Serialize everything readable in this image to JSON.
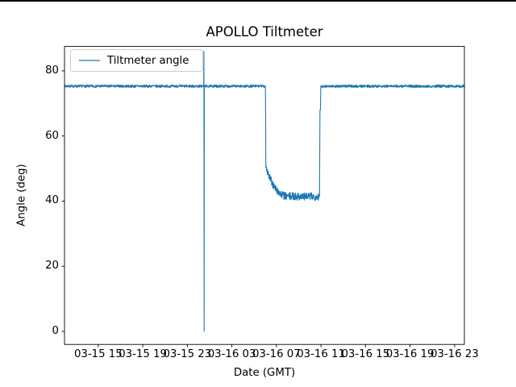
{
  "screen": {
    "background": "#ffffff",
    "top_edge_color": "#000000"
  },
  "chart_data": {
    "type": "line",
    "title": "APOLLO Tiltmeter",
    "xlabel": "Date (GMT)",
    "ylabel": "Angle (deg)",
    "grid": false,
    "frame_color": "#000000",
    "text_color": "#000000",
    "legend": {
      "position": "upper-left",
      "entries": [
        {
          "label": "Tiltmeter angle",
          "color": "#1f77b4"
        }
      ]
    },
    "x_axis": {
      "unit": "hours from 03-15 00:00 GMT",
      "range": [
        11.97,
        47.88
      ],
      "ticks": [
        {
          "hour": 15,
          "label": "03-15 15"
        },
        {
          "hour": 19,
          "label": "03-15 19"
        },
        {
          "hour": 23,
          "label": "03-15 23"
        },
        {
          "hour": 27,
          "label": "03-16 03"
        },
        {
          "hour": 31,
          "label": "03-16 07"
        },
        {
          "hour": 35,
          "label": "03-16 11"
        },
        {
          "hour": 39,
          "label": "03-16 15"
        },
        {
          "hour": 43,
          "label": "03-16 19"
        },
        {
          "hour": 47,
          "label": "03-16 23"
        }
      ]
    },
    "y_axis": {
      "range": [
        -4,
        87.5
      ],
      "ticks": [
        {
          "value": 0,
          "label": "0"
        },
        {
          "value": 20,
          "label": "20"
        },
        {
          "value": 40,
          "label": "40"
        },
        {
          "value": 60,
          "label": "60"
        },
        {
          "value": 80,
          "label": "80"
        }
      ]
    },
    "series": [
      {
        "name": "Tiltmeter angle",
        "color": "#1f77b4",
        "sample_step_hours": 0.02,
        "profile_points": [
          [
            11.97,
            75.3
          ],
          [
            24.47,
            75.3
          ],
          [
            24.49,
            86.0
          ],
          [
            24.51,
            0.0
          ],
          [
            24.53,
            75.3
          ],
          [
            30.02,
            75.3
          ],
          [
            30.05,
            50.5
          ],
          [
            30.35,
            47.5
          ],
          [
            30.7,
            45.0
          ],
          [
            31.05,
            43.2
          ],
          [
            31.45,
            42.0
          ],
          [
            31.8,
            41.5
          ],
          [
            34.88,
            41.4
          ],
          [
            34.9,
            68.0
          ],
          [
            34.96,
            68.0
          ],
          [
            34.98,
            75.3
          ],
          [
            47.88,
            75.3
          ]
        ],
        "noise_bands": [
          {
            "from": 11.97,
            "to": 24.45,
            "amplitude": 0.4
          },
          {
            "from": 24.55,
            "to": 30.0,
            "amplitude": 0.4
          },
          {
            "from": 30.1,
            "to": 34.85,
            "amplitude": 1.2
          },
          {
            "from": 35.0,
            "to": 47.88,
            "amplitude": 0.4
          }
        ],
        "events": [
          {
            "time": "03-16 00:30",
            "description": "transient spike up to ~86 deg then down to ~0 deg"
          },
          {
            "time": "03-16 06:00",
            "description": "drop from ~75.3 deg to ~50 deg, settling near ~41.4 deg"
          },
          {
            "time": "03-16 11:00",
            "description": "step recovery back to ~75.3 deg"
          }
        ]
      }
    ]
  }
}
